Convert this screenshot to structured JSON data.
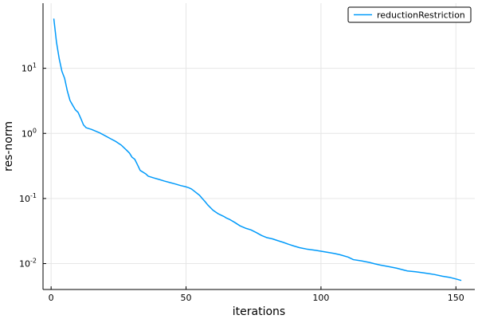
{
  "chart_data": {
    "type": "line",
    "xlabel": "iterations",
    "ylabel": "res-norm",
    "xlim": [
      -3,
      157
    ],
    "ylim": [
      0.004,
      100
    ],
    "yscale": "log",
    "grid": true,
    "legend_position": "top-right",
    "xticks": [
      0,
      50,
      100,
      150
    ],
    "xtick_labels": [
      "0",
      "50",
      "100",
      "150"
    ],
    "yticks": [
      0.01,
      0.1,
      1,
      10
    ],
    "ytick_labels": [
      "10",
      "10",
      "10",
      "10"
    ],
    "ytick_exponents": [
      "-2",
      "-1",
      "0",
      "1"
    ],
    "series": [
      {
        "name": "reductionRestriction",
        "color": "#009AFA",
        "x": [
          1,
          2,
          3,
          4,
          5,
          6,
          7,
          8,
          9,
          10,
          11,
          12,
          13,
          15,
          18,
          20,
          22,
          24,
          26,
          28,
          29,
          30,
          31,
          32,
          33,
          35,
          36,
          38,
          40,
          42,
          44,
          46,
          48,
          50,
          51,
          52,
          53,
          55,
          56,
          57,
          58,
          60,
          62,
          64,
          65,
          66,
          68,
          70,
          72,
          74,
          76,
          78,
          80,
          82,
          84,
          86,
          88,
          90,
          92,
          95,
          98,
          100,
          102,
          105,
          107,
          110,
          112,
          115,
          118,
          120,
          122,
          125,
          128,
          130,
          132,
          135,
          138,
          140,
          142,
          145,
          148,
          150,
          152
        ],
        "values": [
          58,
          25,
          14,
          9,
          7,
          4.5,
          3.2,
          2.7,
          2.3,
          2.1,
          1.7,
          1.35,
          1.22,
          1.15,
          1.02,
          0.92,
          0.83,
          0.75,
          0.66,
          0.55,
          0.5,
          0.43,
          0.4,
          0.33,
          0.27,
          0.24,
          0.22,
          0.207,
          0.196,
          0.185,
          0.176,
          0.167,
          0.158,
          0.151,
          0.146,
          0.14,
          0.13,
          0.112,
          0.1,
          0.09,
          0.08,
          0.066,
          0.058,
          0.053,
          0.05,
          0.048,
          0.043,
          0.038,
          0.035,
          0.033,
          0.03,
          0.027,
          0.025,
          0.024,
          0.0225,
          0.0212,
          0.0198,
          0.0186,
          0.0176,
          0.0166,
          0.016,
          0.0155,
          0.015,
          0.0143,
          0.0137,
          0.0126,
          0.0115,
          0.011,
          0.0104,
          0.0099,
          0.0095,
          0.009,
          0.0085,
          0.0081,
          0.0077,
          0.0075,
          0.0072,
          0.007,
          0.0068,
          0.0064,
          0.0061,
          0.0058,
          0.0055
        ]
      }
    ]
  }
}
